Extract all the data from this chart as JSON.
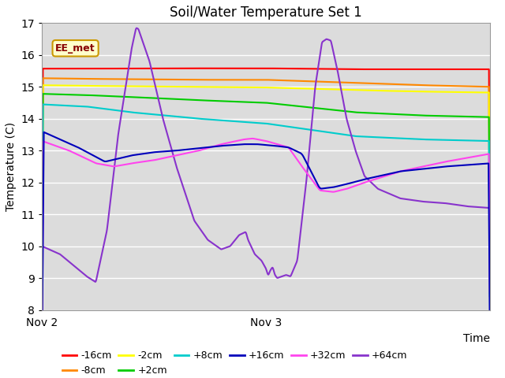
{
  "title": "Soil/Water Temperature Set 1",
  "ylabel": "Temperature (C)",
  "xlabel": "Time",
  "ylim": [
    8.0,
    17.0
  ],
  "yticks": [
    8.0,
    9.0,
    10.0,
    11.0,
    12.0,
    13.0,
    14.0,
    15.0,
    16.0,
    17.0
  ],
  "xtick_labels": [
    "Nov 2",
    "Nov 3"
  ],
  "xtick_positions": [
    0.0,
    0.5
  ],
  "bg_color": "#dcdcdc",
  "annotation_text": "EE_met",
  "annotation_bg": "#ffffcc",
  "annotation_border": "#cc9900",
  "series": {
    "-16cm": {
      "color": "#ff0000",
      "linewidth": 1.5
    },
    "-8cm": {
      "color": "#ff8800",
      "linewidth": 1.5
    },
    "-2cm": {
      "color": "#ffff00",
      "linewidth": 1.5
    },
    "+2cm": {
      "color": "#00cc00",
      "linewidth": 1.5
    },
    "+8cm": {
      "color": "#00cccc",
      "linewidth": 1.5
    },
    "+16cm": {
      "color": "#0000bb",
      "linewidth": 1.5
    },
    "+32cm": {
      "color": "#ff44ee",
      "linewidth": 1.5
    },
    "+64cm": {
      "color": "#8833cc",
      "linewidth": 1.5
    }
  },
  "legend_order": [
    "-16cm",
    "-8cm",
    "-2cm",
    "+2cm",
    "+8cm",
    "+16cm",
    "+32cm",
    "+64cm"
  ]
}
